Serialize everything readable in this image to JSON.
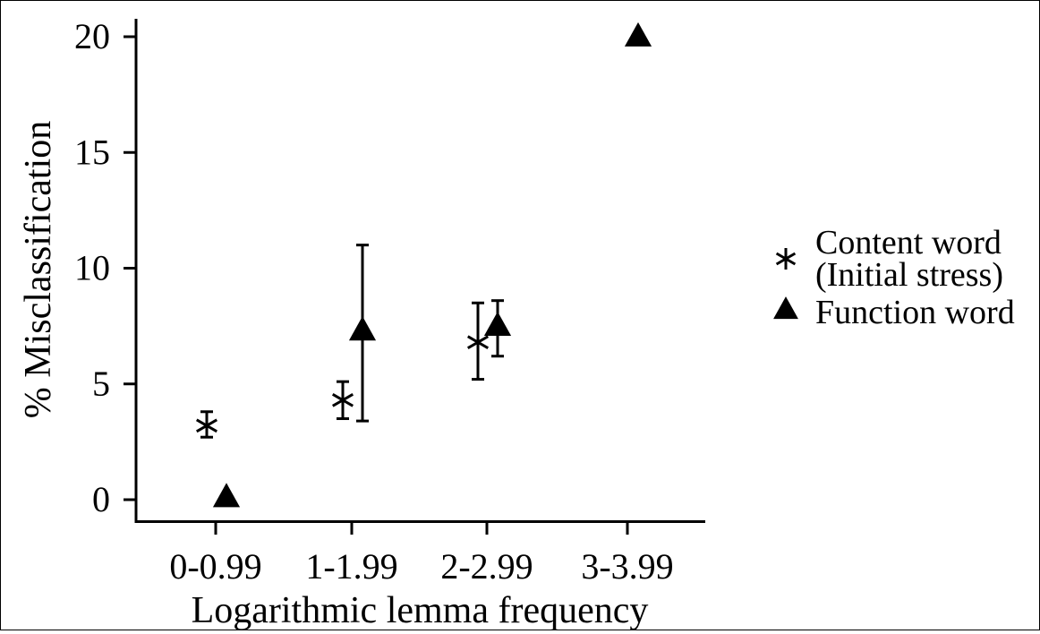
{
  "chart_data": {
    "type": "scatter",
    "categories": [
      "0-0.99",
      "1-1.99",
      "2-2.99",
      "3-3.99"
    ],
    "xlabel": "Logarithmic lemma frequency",
    "ylabel": "% Misclassification",
    "ylim": [
      0,
      20
    ],
    "yticks": [
      "0",
      "5",
      "10",
      "15",
      "20"
    ],
    "grid": false,
    "legend_position": "right",
    "series": [
      {
        "name": "Content word\n(Initial stress)",
        "name_lines": [
          "Content word",
          "(Initial stress)"
        ],
        "marker": "asterisk",
        "points": [
          {
            "category": "0-0.99",
            "y": 3.2,
            "err_low": 2.7,
            "err_high": 3.8
          },
          {
            "category": "1-1.99",
            "y": 4.3,
            "err_low": 3.5,
            "err_high": 5.1
          },
          {
            "category": "2-2.99",
            "y": 6.8,
            "err_low": 5.2,
            "err_high": 8.5
          }
        ]
      },
      {
        "name": "Function word",
        "name_lines": [
          "Function word"
        ],
        "marker": "triangle",
        "points": [
          {
            "category": "0-0.99",
            "y": 0.1
          },
          {
            "category": "1-1.99",
            "y": 7.3,
            "err_low": 3.4,
            "err_high": 11.0
          },
          {
            "category": "2-2.99",
            "y": 7.5,
            "err_low": 6.2,
            "err_high": 8.6
          },
          {
            "category": "3-3.99",
            "y": 20.0
          }
        ]
      }
    ]
  }
}
